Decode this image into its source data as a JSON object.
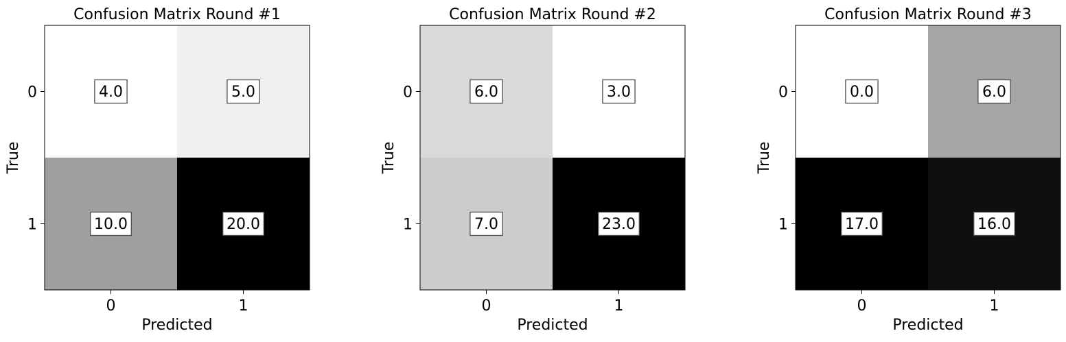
{
  "chart_data": [
    {
      "type": "heatmap",
      "title": "Confusion Matrix Round #1",
      "xlabel": "Predicted",
      "ylabel": "True",
      "x_categories": [
        "0",
        "1"
      ],
      "y_categories": [
        "0",
        "1"
      ],
      "values": [
        [
          4,
          5
        ],
        [
          10,
          20
        ]
      ],
      "labels": [
        [
          "4.0",
          "5.0"
        ],
        [
          "10.0",
          "20.0"
        ]
      ],
      "colormap": "gray_r",
      "color_range": [
        4,
        20
      ]
    },
    {
      "type": "heatmap",
      "title": "Confusion Matrix Round #2",
      "xlabel": "Predicted",
      "ylabel": "True",
      "x_categories": [
        "0",
        "1"
      ],
      "y_categories": [
        "0",
        "1"
      ],
      "values": [
        [
          6,
          3
        ],
        [
          7,
          23
        ]
      ],
      "labels": [
        [
          "6.0",
          "3.0"
        ],
        [
          "7.0",
          "23.0"
        ]
      ],
      "colormap": "gray_r",
      "color_range": [
        3,
        23
      ]
    },
    {
      "type": "heatmap",
      "title": "Confusion Matrix Round #3",
      "xlabel": "Predicted",
      "ylabel": "True",
      "x_categories": [
        "0",
        "1"
      ],
      "y_categories": [
        "0",
        "1"
      ],
      "values": [
        [
          0,
          6
        ],
        [
          17,
          16
        ]
      ],
      "labels": [
        [
          "0.0",
          "6.0"
        ],
        [
          "17.0",
          "16.0"
        ]
      ],
      "colormap": "gray_r",
      "color_range": [
        0,
        17
      ]
    }
  ]
}
